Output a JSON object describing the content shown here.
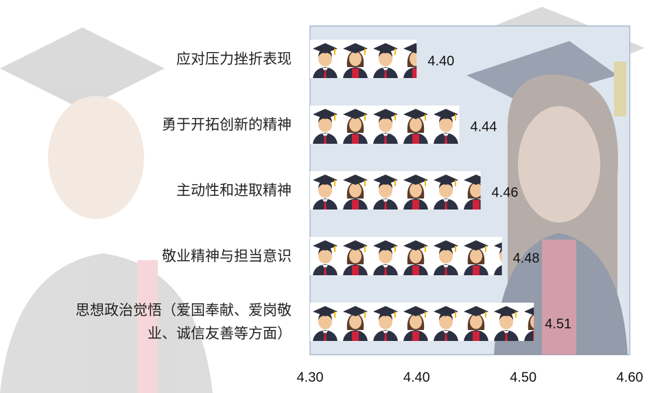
{
  "chart_data": {
    "type": "bar",
    "orientation": "horizontal",
    "categories": [
      "应对压力挫折表现",
      "勇于开拓创新的精神",
      "主动性和进取精神",
      "敬业精神与担当意识",
      "思想政治觉悟（爱国奉献、爱岗敬业、诚信友善等方面）"
    ],
    "values": [
      4.4,
      4.44,
      4.46,
      4.48,
      4.51
    ],
    "value_labels": [
      "4.40",
      "4.44",
      "4.46",
      "4.48",
      "4.51"
    ],
    "xlim": [
      4.3,
      4.6
    ],
    "xticks": [
      {
        "value": 4.3,
        "label": "4.30"
      },
      {
        "value": 4.4,
        "label": "4.40"
      },
      {
        "value": 4.5,
        "label": "4.50"
      },
      {
        "value": 4.6,
        "label": "4.60"
      }
    ]
  }
}
